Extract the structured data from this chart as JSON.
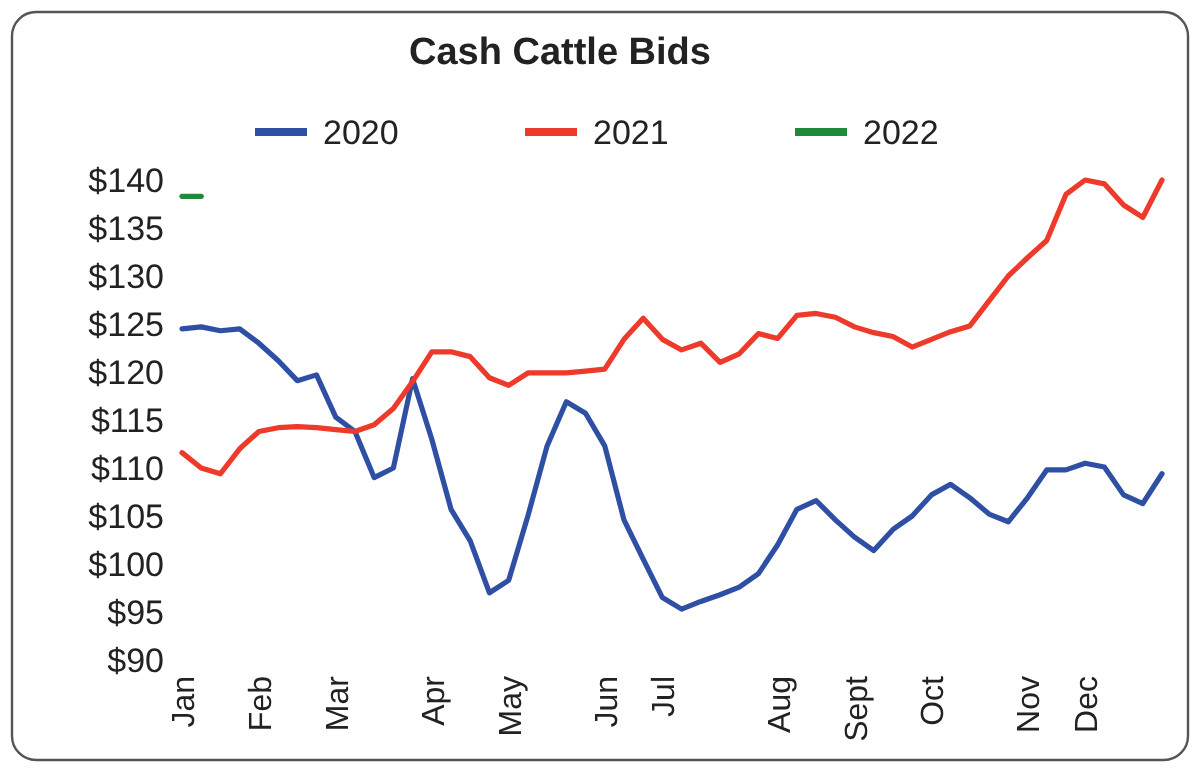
{
  "chart_data": {
    "type": "line",
    "title": "Cash Cattle Bids",
    "categories": [
      "Jan",
      null,
      null,
      null,
      "Feb",
      null,
      null,
      null,
      "Mar",
      null,
      null,
      null,
      null,
      "Apr",
      null,
      null,
      null,
      "May",
      null,
      null,
      null,
      null,
      "Jun",
      null,
      null,
      "Jul",
      null,
      null,
      null,
      null,
      null,
      "Aug",
      null,
      null,
      null,
      "Sept",
      null,
      null,
      null,
      "Oct",
      null,
      null,
      null,
      null,
      "Nov",
      null,
      null,
      "Dec",
      null,
      null,
      null,
      null
    ],
    "series": [
      {
        "name": "2020",
        "color": "#2e4fa3",
        "values": [
          124.5,
          124.7,
          124.3,
          124.5,
          123,
          121.2,
          119.1,
          119.7,
          115.3,
          113.8,
          109,
          110,
          119.3,
          113,
          105.7,
          102.4,
          97,
          98.3,
          105,
          112.3,
          116.9,
          115.7,
          112.3,
          104.6,
          100.5,
          96.5,
          95.3,
          96.1,
          96.8,
          97.6,
          99,
          102,
          105.7,
          106.6,
          104.6,
          102.8,
          101.4,
          103.6,
          105,
          107.2,
          108.3,
          106.9,
          105.2,
          104.4,
          106.9,
          109.8,
          109.8,
          110.5,
          110.1,
          107.2,
          106.3,
          109.4
        ]
      },
      {
        "name": "2021",
        "color": "#ee3a2a",
        "values": [
          111.6,
          110,
          109.4,
          112,
          113.8,
          114.2,
          114.3,
          114.2,
          114,
          113.8,
          114.5,
          116.2,
          119,
          122.1,
          122.1,
          121.6,
          119.4,
          118.6,
          119.9,
          119.9,
          119.9,
          120.1,
          120.3,
          123.4,
          125.6,
          123.4,
          122.3,
          123,
          121,
          121.9,
          124,
          123.5,
          125.9,
          126.1,
          125.7,
          124.7,
          124.1,
          123.7,
          122.6,
          123.4,
          124.2,
          124.8,
          127.4,
          130,
          131.9,
          133.7,
          138.5,
          140,
          139.6,
          137.4,
          136.1,
          140
        ]
      },
      {
        "name": "2022",
        "color": "#1f8a3a",
        "values": [
          138.3,
          138.3,
          null,
          null,
          null,
          null,
          null,
          null,
          null,
          null,
          null,
          null,
          null,
          null,
          null,
          null,
          null,
          null,
          null,
          null,
          null,
          null,
          null,
          null,
          null,
          null,
          null,
          null,
          null,
          null,
          null,
          null,
          null,
          null,
          null,
          null,
          null,
          null,
          null,
          null,
          null,
          null,
          null,
          null,
          null,
          null,
          null,
          null,
          null,
          null,
          null,
          null
        ]
      }
    ],
    "ylim": [
      90,
      140
    ],
    "yticks": [
      {
        "value": 90,
        "label": "$90"
      },
      {
        "value": 95,
        "label": "$95"
      },
      {
        "value": 100,
        "label": "$100"
      },
      {
        "value": 105,
        "label": "$105"
      },
      {
        "value": 110,
        "label": "$110"
      },
      {
        "value": 115,
        "label": "$115"
      },
      {
        "value": 120,
        "label": "$120"
      },
      {
        "value": 125,
        "label": "$125"
      },
      {
        "value": 130,
        "label": "$130"
      },
      {
        "value": 135,
        "label": "$135"
      },
      {
        "value": 140,
        "label": "$140"
      }
    ],
    "grid": false,
    "legend": "top",
    "marker": "none",
    "line_style": "solid"
  }
}
